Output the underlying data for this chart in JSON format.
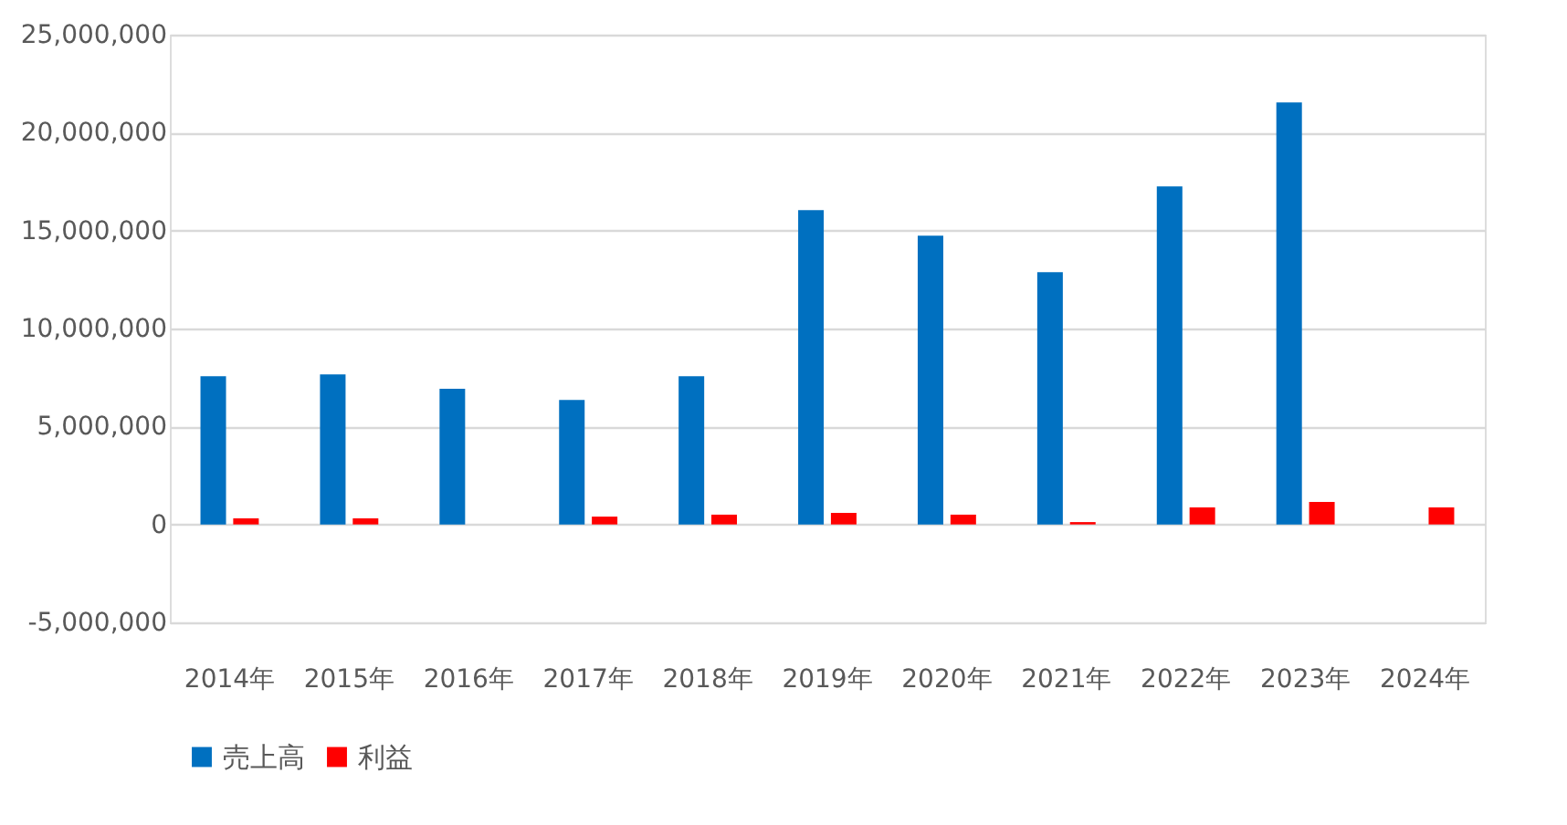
{
  "chart_data": {
    "type": "bar",
    "categories": [
      "2014年",
      "2015年",
      "2016年",
      "2017年",
      "2018年",
      "2019年",
      "2020年",
      "2021年",
      "2022年",
      "2023年",
      "2024年"
    ],
    "series": [
      {
        "name": "売上高",
        "color": "#0070c0",
        "values": [
          7570000,
          7660000,
          6920000,
          6360000,
          7570000,
          16040000,
          14740000,
          12880000,
          17250000,
          21540000,
          null
        ]
      },
      {
        "name": "利益",
        "color": "#ff0000",
        "values": [
          310000,
          310000,
          null,
          400000,
          500000,
          590000,
          500000,
          120000,
          870000,
          1150000,
          870000
        ]
      }
    ],
    "ylim": [
      -5000000,
      25000000
    ],
    "yticks": [
      {
        "value": -5000000,
        "label": "-5,000,000"
      },
      {
        "value": 0,
        "label": "0"
      },
      {
        "value": 5000000,
        "label": "5,000,000"
      },
      {
        "value": 10000000,
        "label": "10,000,000"
      },
      {
        "value": 15000000,
        "label": "15,000,000"
      },
      {
        "value": 20000000,
        "label": "20,000,000"
      },
      {
        "value": 25000000,
        "label": "25,000,000"
      }
    ],
    "grid": "y",
    "legend": "bottom"
  }
}
